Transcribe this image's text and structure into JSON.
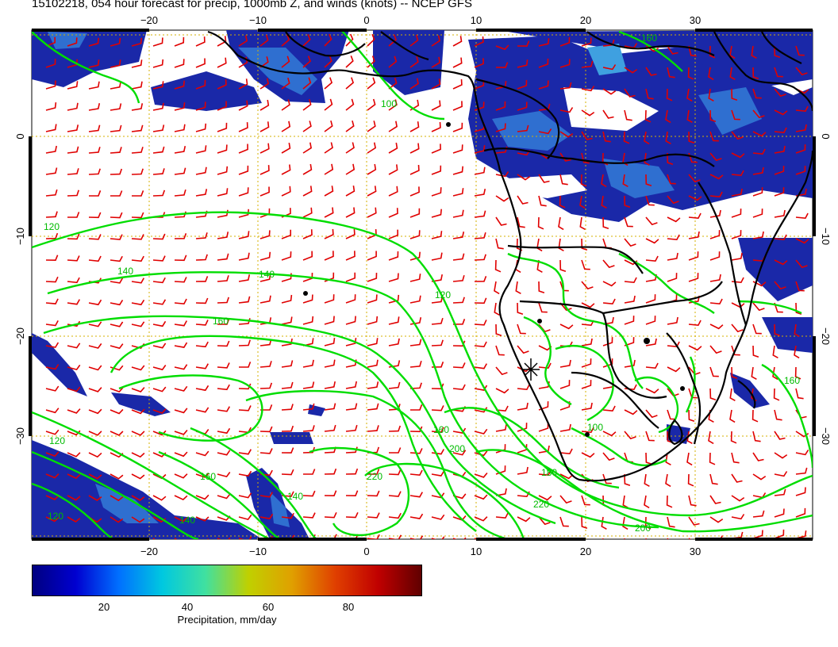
{
  "title": "15102218, 054 hour forecast for precip, 1000mb Z, and winds (knots) -- NCEP GFS",
  "map": {
    "region": "South Atlantic and southern Africa",
    "lon_ticks_top": [
      "−20",
      "−10",
      "0",
      "10",
      "20",
      "30"
    ],
    "lon_ticks_bottom": [
      "−20",
      "−10",
      "0",
      "10",
      "20",
      "30"
    ],
    "lat_ticks_left": [
      "0",
      "−10",
      "−20",
      "−30"
    ],
    "lat_ticks_right": [
      "0",
      "−10",
      "−20",
      "−30"
    ],
    "contour_labels": [
      "120",
      "140",
      "140",
      "160",
      "120",
      "160",
      "200",
      "220",
      "220",
      "200",
      "180",
      "160",
      "140",
      "120",
      "100",
      "160",
      "100",
      "160",
      "120",
      "140"
    ],
    "colors": {
      "contour": "#00dd00",
      "wind_barb": "#e00000",
      "coast": "#000000",
      "grid": "#d4b000",
      "precip_low": "#10188a",
      "precip_high": "#6b0000"
    }
  },
  "colorbar": {
    "labels": [
      "20",
      "40",
      "60",
      "80"
    ],
    "title": "Precipitation, mm/day"
  }
}
